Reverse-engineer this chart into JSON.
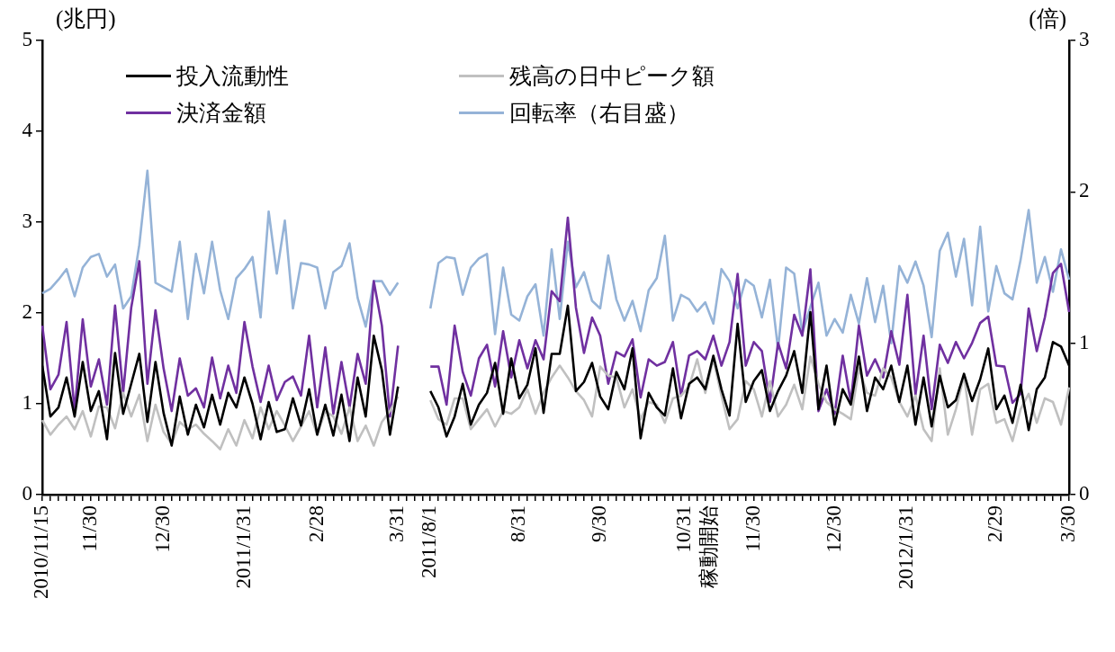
{
  "chart_data": {
    "type": "line",
    "ylabel": "(兆円)",
    "y2label": "(倍)",
    "categories": [
      "2010/11/15",
      null,
      null,
      null,
      null,
      null,
      "11/30",
      null,
      null,
      null,
      null,
      null,
      null,
      null,
      null,
      "12/30",
      null,
      null,
      null,
      null,
      null,
      null,
      null,
      null,
      null,
      "2011/1/31",
      null,
      null,
      null,
      null,
      null,
      null,
      null,
      null,
      "2/28",
      null,
      null,
      null,
      null,
      null,
      null,
      null,
      null,
      null,
      "3/31",
      null,
      null,
      null,
      "2011/8/1",
      null,
      null,
      null,
      null,
      null,
      null,
      null,
      null,
      null,
      null,
      "8/31",
      null,
      null,
      null,
      null,
      null,
      null,
      null,
      null,
      null,
      "9/30",
      null,
      null,
      null,
      null,
      null,
      null,
      null,
      null,
      null,
      null,
      null,
      "10/31\n稼動開始",
      null,
      null,
      null,
      null,
      null,
      null,
      "11/30",
      null,
      null,
      null,
      null,
      null,
      null,
      null,
      null,
      null,
      "12/30",
      null,
      null,
      null,
      null,
      null,
      null,
      null,
      null,
      "2012/1/31",
      null,
      null,
      null,
      null,
      null,
      null,
      null,
      null,
      null,
      null,
      "2/29",
      null,
      null,
      null,
      null,
      null,
      null,
      null,
      null,
      "3/30"
    ],
    "series": [
      {
        "name": "投入流動性",
        "color": "#000000",
        "values": [
          1.42,
          0.86,
          0.96,
          1.29,
          0.86,
          1.46,
          0.92,
          1.14,
          0.61,
          1.56,
          0.89,
          1.22,
          1.55,
          0.8,
          1.46,
          0.9,
          0.54,
          1.08,
          0.66,
          0.99,
          0.74,
          1.1,
          0.77,
          1.12,
          0.96,
          1.29,
          1.0,
          0.61,
          1.02,
          0.69,
          0.72,
          1.06,
          0.76,
          1.16,
          0.66,
          0.99,
          0.65,
          1.1,
          0.59,
          1.29,
          0.86,
          1.75,
          1.37,
          0.66,
          1.19,
          null,
          null,
          null,
          1.14,
          0.96,
          0.64,
          0.86,
          1.22,
          0.77,
          0.99,
          1.12,
          1.45,
          0.89,
          1.5,
          1.06,
          1.21,
          1.61,
          0.9,
          1.55,
          1.55,
          2.08,
          1.14,
          1.24,
          1.45,
          1.08,
          0.94,
          1.35,
          1.16,
          1.61,
          0.62,
          1.12,
          0.96,
          0.87,
          1.39,
          0.84,
          1.22,
          1.29,
          1.16,
          1.53,
          1.16,
          0.87,
          1.88,
          1.02,
          1.25,
          1.37,
          0.92,
          1.14,
          1.31,
          1.58,
          1.12,
          2.01,
          0.94,
          1.42,
          0.77,
          1.16,
          0.99,
          1.52,
          0.92,
          1.29,
          1.16,
          1.42,
          1.02,
          1.42,
          0.77,
          1.29,
          0.75,
          1.31,
          0.96,
          1.04,
          1.33,
          1.03,
          1.27,
          1.61,
          0.94,
          1.09,
          0.79,
          1.21,
          0.71,
          1.16,
          1.29,
          1.68,
          1.63,
          1.42
        ]
      },
      {
        "name": "残高の日中ピーク額",
        "color": "#c0c0c0",
        "values": [
          0.82,
          0.66,
          0.77,
          0.86,
          0.72,
          0.92,
          0.64,
          0.97,
          0.96,
          0.73,
          1.12,
          0.86,
          1.1,
          0.59,
          0.99,
          0.69,
          0.56,
          0.8,
          0.72,
          0.77,
          0.67,
          0.59,
          0.5,
          0.72,
          0.54,
          0.82,
          0.62,
          0.96,
          0.72,
          0.92,
          0.76,
          0.59,
          0.75,
          0.92,
          0.66,
          0.92,
          0.86,
          0.67,
          0.96,
          0.59,
          0.76,
          0.54,
          0.8,
          0.92,
          1.08,
          null,
          null,
          null,
          1.04,
          0.83,
          0.77,
          1.06,
          1.06,
          0.72,
          0.83,
          0.94,
          0.75,
          0.92,
          0.89,
          0.96,
          1.16,
          0.89,
          1.12,
          1.29,
          1.42,
          1.29,
          1.14,
          1.04,
          0.86,
          1.41,
          1.31,
          1.29,
          0.96,
          1.16,
          0.83,
          1.02,
          0.99,
          0.79,
          1.06,
          1.09,
          1.19,
          1.49,
          1.12,
          1.49,
          1.09,
          0.72,
          0.83,
          1.25,
          1.16,
          0.86,
          1.25,
          0.86,
          0.99,
          1.21,
          0.94,
          1.52,
          1.22,
          1.02,
          0.94,
          0.89,
          0.83,
          1.39,
          1.12,
          1.09,
          1.39,
          1.29,
          1.02,
          0.86,
          1.09,
          0.72,
          0.59,
          1.39,
          0.66,
          0.94,
          1.31,
          0.66,
          1.16,
          1.22,
          0.79,
          0.83,
          0.59,
          0.94,
          1.11,
          0.79,
          1.06,
          1.02,
          0.77,
          1.18
        ]
      },
      {
        "name": "決済金額",
        "color": "#7030a0",
        "values": [
          1.86,
          1.16,
          1.32,
          1.9,
          0.92,
          1.93,
          1.19,
          1.49,
          0.99,
          2.08,
          1.12,
          2.06,
          2.57,
          1.22,
          2.03,
          1.39,
          0.92,
          1.5,
          1.09,
          1.17,
          0.96,
          1.51,
          1.06,
          1.42,
          1.12,
          1.9,
          1.41,
          1.02,
          1.42,
          1.04,
          1.24,
          1.3,
          1.09,
          1.75,
          0.96,
          1.62,
          0.89,
          1.46,
          0.96,
          1.55,
          1.22,
          2.35,
          1.86,
          0.86,
          1.64,
          null,
          null,
          null,
          1.41,
          1.41,
          0.99,
          1.86,
          1.35,
          1.09,
          1.5,
          1.65,
          1.19,
          1.8,
          1.29,
          1.7,
          1.39,
          1.7,
          1.49,
          2.24,
          2.13,
          3.05,
          2.06,
          1.56,
          1.95,
          1.75,
          1.22,
          1.57,
          1.52,
          1.71,
          1.07,
          1.49,
          1.42,
          1.46,
          1.68,
          1.09,
          1.53,
          1.58,
          1.49,
          1.75,
          1.42,
          1.68,
          2.43,
          1.42,
          1.68,
          1.58,
          1.02,
          1.67,
          1.39,
          1.98,
          1.75,
          2.48,
          0.92,
          1.16,
          0.89,
          1.53,
          1.02,
          1.86,
          1.31,
          1.49,
          1.29,
          1.8,
          1.43,
          2.2,
          1.1,
          1.75,
          0.94,
          1.65,
          1.45,
          1.68,
          1.5,
          1.67,
          1.89,
          1.96,
          1.42,
          1.41,
          1.01,
          1.11,
          2.05,
          1.58,
          1.95,
          2.44,
          2.54,
          2.01
        ]
      },
      {
        "name": "回転率（右目盛）",
        "color": "#95b3d7",
        "axis": "y2",
        "values": [
          1.33,
          1.36,
          1.42,
          1.49,
          1.31,
          1.5,
          1.57,
          1.59,
          1.44,
          1.52,
          1.23,
          1.31,
          1.65,
          2.14,
          1.4,
          1.37,
          1.34,
          1.67,
          1.16,
          1.59,
          1.33,
          1.67,
          1.35,
          1.16,
          1.43,
          1.49,
          1.57,
          1.17,
          1.87,
          1.46,
          1.81,
          1.23,
          1.53,
          1.52,
          1.5,
          1.23,
          1.47,
          1.51,
          1.66,
          1.3,
          1.11,
          1.41,
          1.41,
          1.32,
          1.4,
          null,
          null,
          null,
          1.23,
          1.53,
          1.57,
          1.56,
          1.32,
          1.5,
          1.56,
          1.59,
          1.06,
          1.5,
          1.19,
          1.15,
          1.31,
          1.39,
          1.05,
          1.62,
          1.16,
          1.67,
          1.37,
          1.47,
          1.28,
          1.23,
          1.58,
          1.29,
          1.15,
          1.28,
          1.08,
          1.35,
          1.43,
          1.71,
          1.15,
          1.32,
          1.29,
          1.21,
          1.27,
          1.13,
          1.49,
          1.41,
          1.23,
          1.42,
          1.38,
          1.17,
          1.42,
          0.96,
          1.5,
          1.46,
          1.07,
          1.24,
          1.4,
          1.05,
          1.16,
          1.07,
          1.32,
          1.13,
          1.43,
          1.14,
          1.38,
          1.0,
          1.51,
          1.4,
          1.54,
          1.38,
          1.04,
          1.61,
          1.73,
          1.44,
          1.69,
          1.25,
          1.77,
          1.21,
          1.51,
          1.33,
          1.29,
          1.55,
          1.88,
          1.4,
          1.57,
          1.34,
          1.62,
          1.42
        ]
      }
    ],
    "ylim": [
      0,
      5
    ],
    "yticks": [
      0,
      1,
      2,
      3,
      4,
      5
    ],
    "y2lim": [
      0,
      3
    ],
    "y2ticks": [
      0,
      1,
      2,
      3
    ],
    "grid": false,
    "legend": "top left",
    "marker": "none",
    "line_style": "solid"
  }
}
